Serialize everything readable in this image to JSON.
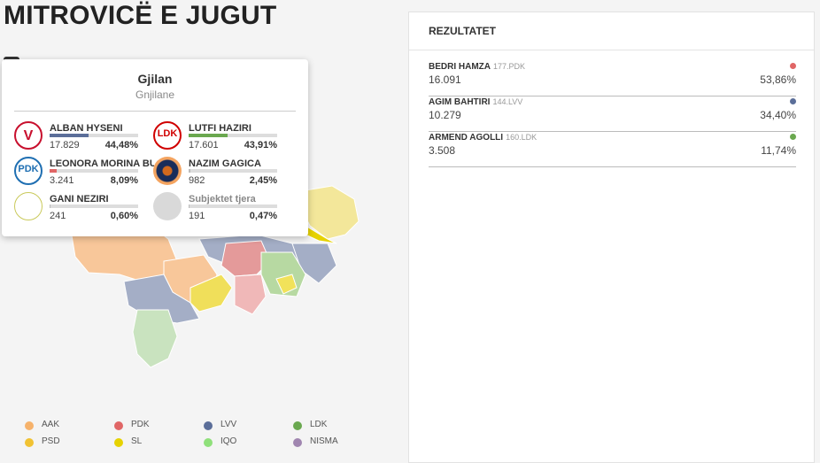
{
  "page": {
    "title": "MITROVICË E JUGUT"
  },
  "popup": {
    "title": "Gjilan",
    "subtitle": "Gnjilane",
    "candidates": [
      {
        "name": "ALBAN HYSENI",
        "votes": "17.829",
        "pct": "44,48%",
        "share": 0.4448,
        "color": "#5b6e99",
        "logo": "vv-logo-icon",
        "logo_text": "V",
        "logo_color": "#c8102e"
      },
      {
        "name": "LUTFI HAZIRI",
        "votes": "17.601",
        "pct": "43,91%",
        "share": 0.4391,
        "color": "#6aa84f",
        "logo": "ldk-logo-icon",
        "logo_text": "LDK",
        "logo_color": "#d00000"
      },
      {
        "name": "LEONORA MORINA BUNJAKU",
        "votes": "3.241",
        "pct": "8,09%",
        "share": 0.0809,
        "color": "#e06666",
        "logo": "pdk-logo-icon",
        "logo_text": "PDK",
        "logo_color": "#1f6fb2"
      },
      {
        "name": "NAZIM GAGICA",
        "votes": "982",
        "pct": "2,45%",
        "share": 0.0245,
        "color": "#bbbbbb",
        "logo": "aak-logo-icon",
        "logo_text": "",
        "logo_color": "#1a2d5a"
      },
      {
        "name": "GANI NEZIRI",
        "votes": "241",
        "pct": "0,60%",
        "share": 0.006,
        "color": "#bbbbbb",
        "logo": "candidate-logo-icon",
        "logo_text": "",
        "logo_color": "#ffffff"
      },
      {
        "name": "Subjektet tjera",
        "votes": "191",
        "pct": "0,47%",
        "share": 0.0047,
        "color": "#bbbbbb",
        "logo": "others-logo-icon",
        "logo_text": "",
        "logo_color": "#d9d9d9"
      }
    ]
  },
  "legend": [
    {
      "label": "AAK",
      "color": "#f6b26b"
    },
    {
      "label": "PDK",
      "color": "#e06666"
    },
    {
      "label": "LVV",
      "color": "#5b6e99"
    },
    {
      "label": "LDK",
      "color": "#6aa84f"
    },
    {
      "label": "PSD",
      "color": "#f1c232"
    },
    {
      "label": "SL",
      "color": "#e6d200"
    },
    {
      "label": "IQO",
      "color": "#8fe07a"
    },
    {
      "label": "NISMA",
      "color": "#a086b0"
    }
  ],
  "results": {
    "title": "REZULTATET",
    "rows": [
      {
        "name": "BEDRI HAMZA",
        "list": "177.PDK",
        "votes": "16.091",
        "pct": "53,86%",
        "color": "#e06666"
      },
      {
        "name": "AGIM BAHTIRI",
        "list": "144.LVV",
        "votes": "10.279",
        "pct": "34,40%",
        "color": "#5b6e99"
      },
      {
        "name": "ARMEND AGOLLI",
        "list": "160.LDK",
        "votes": "3.508",
        "pct": "11,74%",
        "color": "#6aa84f"
      }
    ]
  }
}
